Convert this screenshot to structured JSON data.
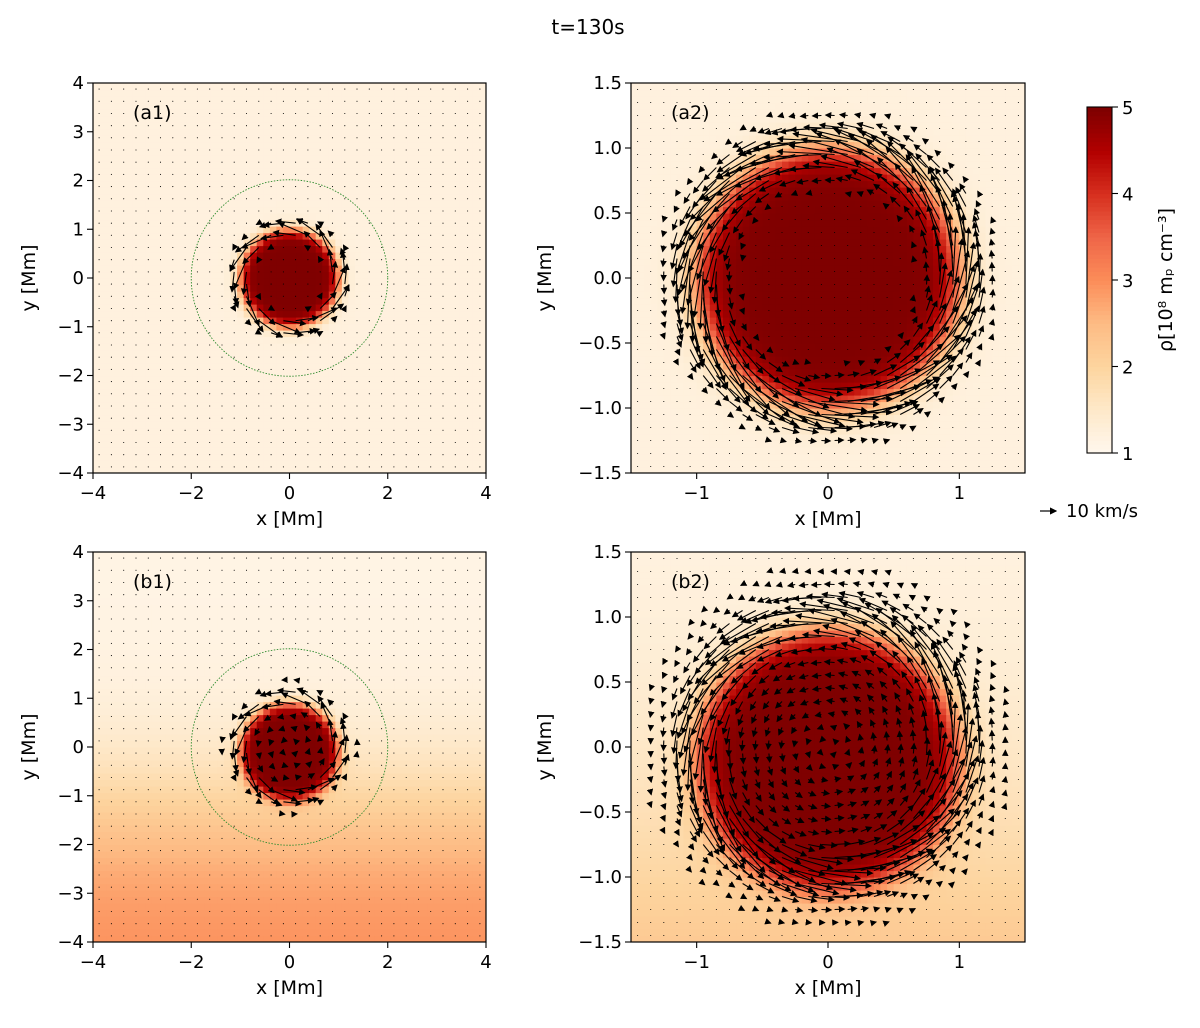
{
  "figure_title": "t=130s",
  "colorbar": {
    "label": "ρ[10⁸ mₚ cm⁻³]",
    "min": 1,
    "max": 5,
    "ticks": [
      "1",
      "2",
      "3",
      "4",
      "5"
    ],
    "colormap": "OrRd",
    "colors": [
      "#fff7ec",
      "#fee8c8",
      "#fdd49e",
      "#fdbb84",
      "#fc8d59",
      "#ef6548",
      "#d7301f",
      "#b30000",
      "#7f0000"
    ]
  },
  "reference_arrow": {
    "label": "10 km/s",
    "speed_kms": 10
  },
  "chart_data": [
    {
      "id": "a1",
      "type": "heatmap+quiver",
      "panel_label": "(a1)",
      "xlabel": "x [Mm]",
      "ylabel": "y [Mm]",
      "xlim": [
        -4,
        4
      ],
      "ylim": [
        -4,
        4
      ],
      "xticks": [
        "−4",
        "−2",
        "0",
        "2",
        "4"
      ],
      "yticks": [
        "−4",
        "−3",
        "−2",
        "−1",
        "0",
        "1",
        "2",
        "3",
        "4"
      ],
      "density": {
        "background": 1.2,
        "blob_peak": 5.0,
        "blob_radius": 1.0,
        "center": [
          0,
          0
        ],
        "background_gradient": 0
      },
      "guide_circle": {
        "radius": 2.0,
        "color": "#2e8b2e"
      },
      "vortex": {
        "ring_radius": 1.0,
        "max_speed_kms": 28,
        "direction": "counterclockwise"
      },
      "quiver_spacing": 0.25
    },
    {
      "id": "a2",
      "type": "heatmap+quiver",
      "panel_label": "(a2)",
      "xlabel": "x [Mm]",
      "ylabel": "y [Mm]",
      "xlim": [
        -1.5,
        1.5
      ],
      "ylim": [
        -1.5,
        1.5
      ],
      "xticks": [
        "−1",
        "0",
        "1"
      ],
      "yticks": [
        "−1.5",
        "−1.0",
        "−0.5",
        "0.0",
        "0.5",
        "1.0",
        "1.5"
      ],
      "density": {
        "background": 1.2,
        "blob_peak": 5.0,
        "blob_radius": 1.0,
        "center": [
          0,
          0
        ],
        "background_gradient": 0
      },
      "vortex": {
        "ring_radius": 1.0,
        "max_speed_kms": 28,
        "direction": "counterclockwise"
      },
      "quiver_spacing": 0.1
    },
    {
      "id": "b1",
      "type": "heatmap+quiver",
      "panel_label": "(b1)",
      "xlabel": "x [Mm]",
      "ylabel": "y [Mm]",
      "xlim": [
        -4,
        4
      ],
      "ylim": [
        -4,
        4
      ],
      "xticks": [
        "−4",
        "−2",
        "0",
        "2",
        "4"
      ],
      "yticks": [
        "−4",
        "−3",
        "−2",
        "−1",
        "0",
        "1",
        "2",
        "3",
        "4"
      ],
      "density": {
        "background": 1.2,
        "blob_peak": 5.0,
        "blob_radius": 1.0,
        "center": [
          0,
          -0.1
        ],
        "background_gradient": 1
      },
      "guide_circle": {
        "radius": 2.0,
        "color": "#2e8b2e"
      },
      "vortex": {
        "ring_radius": 1.0,
        "max_speed_kms": 22,
        "direction": "counterclockwise"
      },
      "quiver_spacing": 0.25
    },
    {
      "id": "b2",
      "type": "heatmap+quiver",
      "panel_label": "(b2)",
      "xlabel": "x [Mm]",
      "ylabel": "y [Mm]",
      "xlim": [
        -1.5,
        1.5
      ],
      "ylim": [
        -1.5,
        1.5
      ],
      "xticks": [
        "−1",
        "0",
        "1"
      ],
      "yticks": [
        "−1.5",
        "−1.0",
        "−0.5",
        "0.0",
        "0.5",
        "1.0",
        "1.5"
      ],
      "density": {
        "background": 1.2,
        "blob_peak": 5.0,
        "blob_radius": 1.0,
        "center": [
          0,
          -0.1
        ],
        "background_gradient": 1
      },
      "vortex": {
        "ring_radius": 1.0,
        "max_speed_kms": 22,
        "direction": "counterclockwise"
      },
      "quiver_spacing": 0.1
    }
  ]
}
